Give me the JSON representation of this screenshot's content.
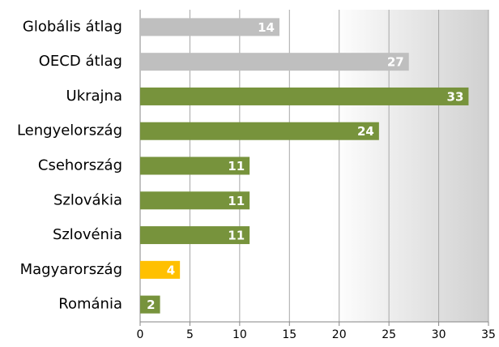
{
  "chart_data": {
    "type": "bar",
    "orientation": "horizontal",
    "categories": [
      "Globális átlag",
      "OECD átlag",
      "Ukrajna",
      "Lengyelország",
      "Csehország",
      "Szlovákia",
      "Szlovénia",
      "Magyarország",
      "Románia"
    ],
    "values": [
      14,
      27,
      33,
      24,
      11,
      11,
      11,
      4,
      2
    ],
    "colors": [
      "#bfbfbf",
      "#bfbfbf",
      "#77933c",
      "#77933c",
      "#77933c",
      "#77933c",
      "#77933c",
      "#ffc000",
      "#77933c"
    ],
    "xlim": [
      0,
      35
    ],
    "xticks": [
      0,
      5,
      10,
      15,
      20,
      25,
      30,
      35
    ],
    "grid": true
  }
}
